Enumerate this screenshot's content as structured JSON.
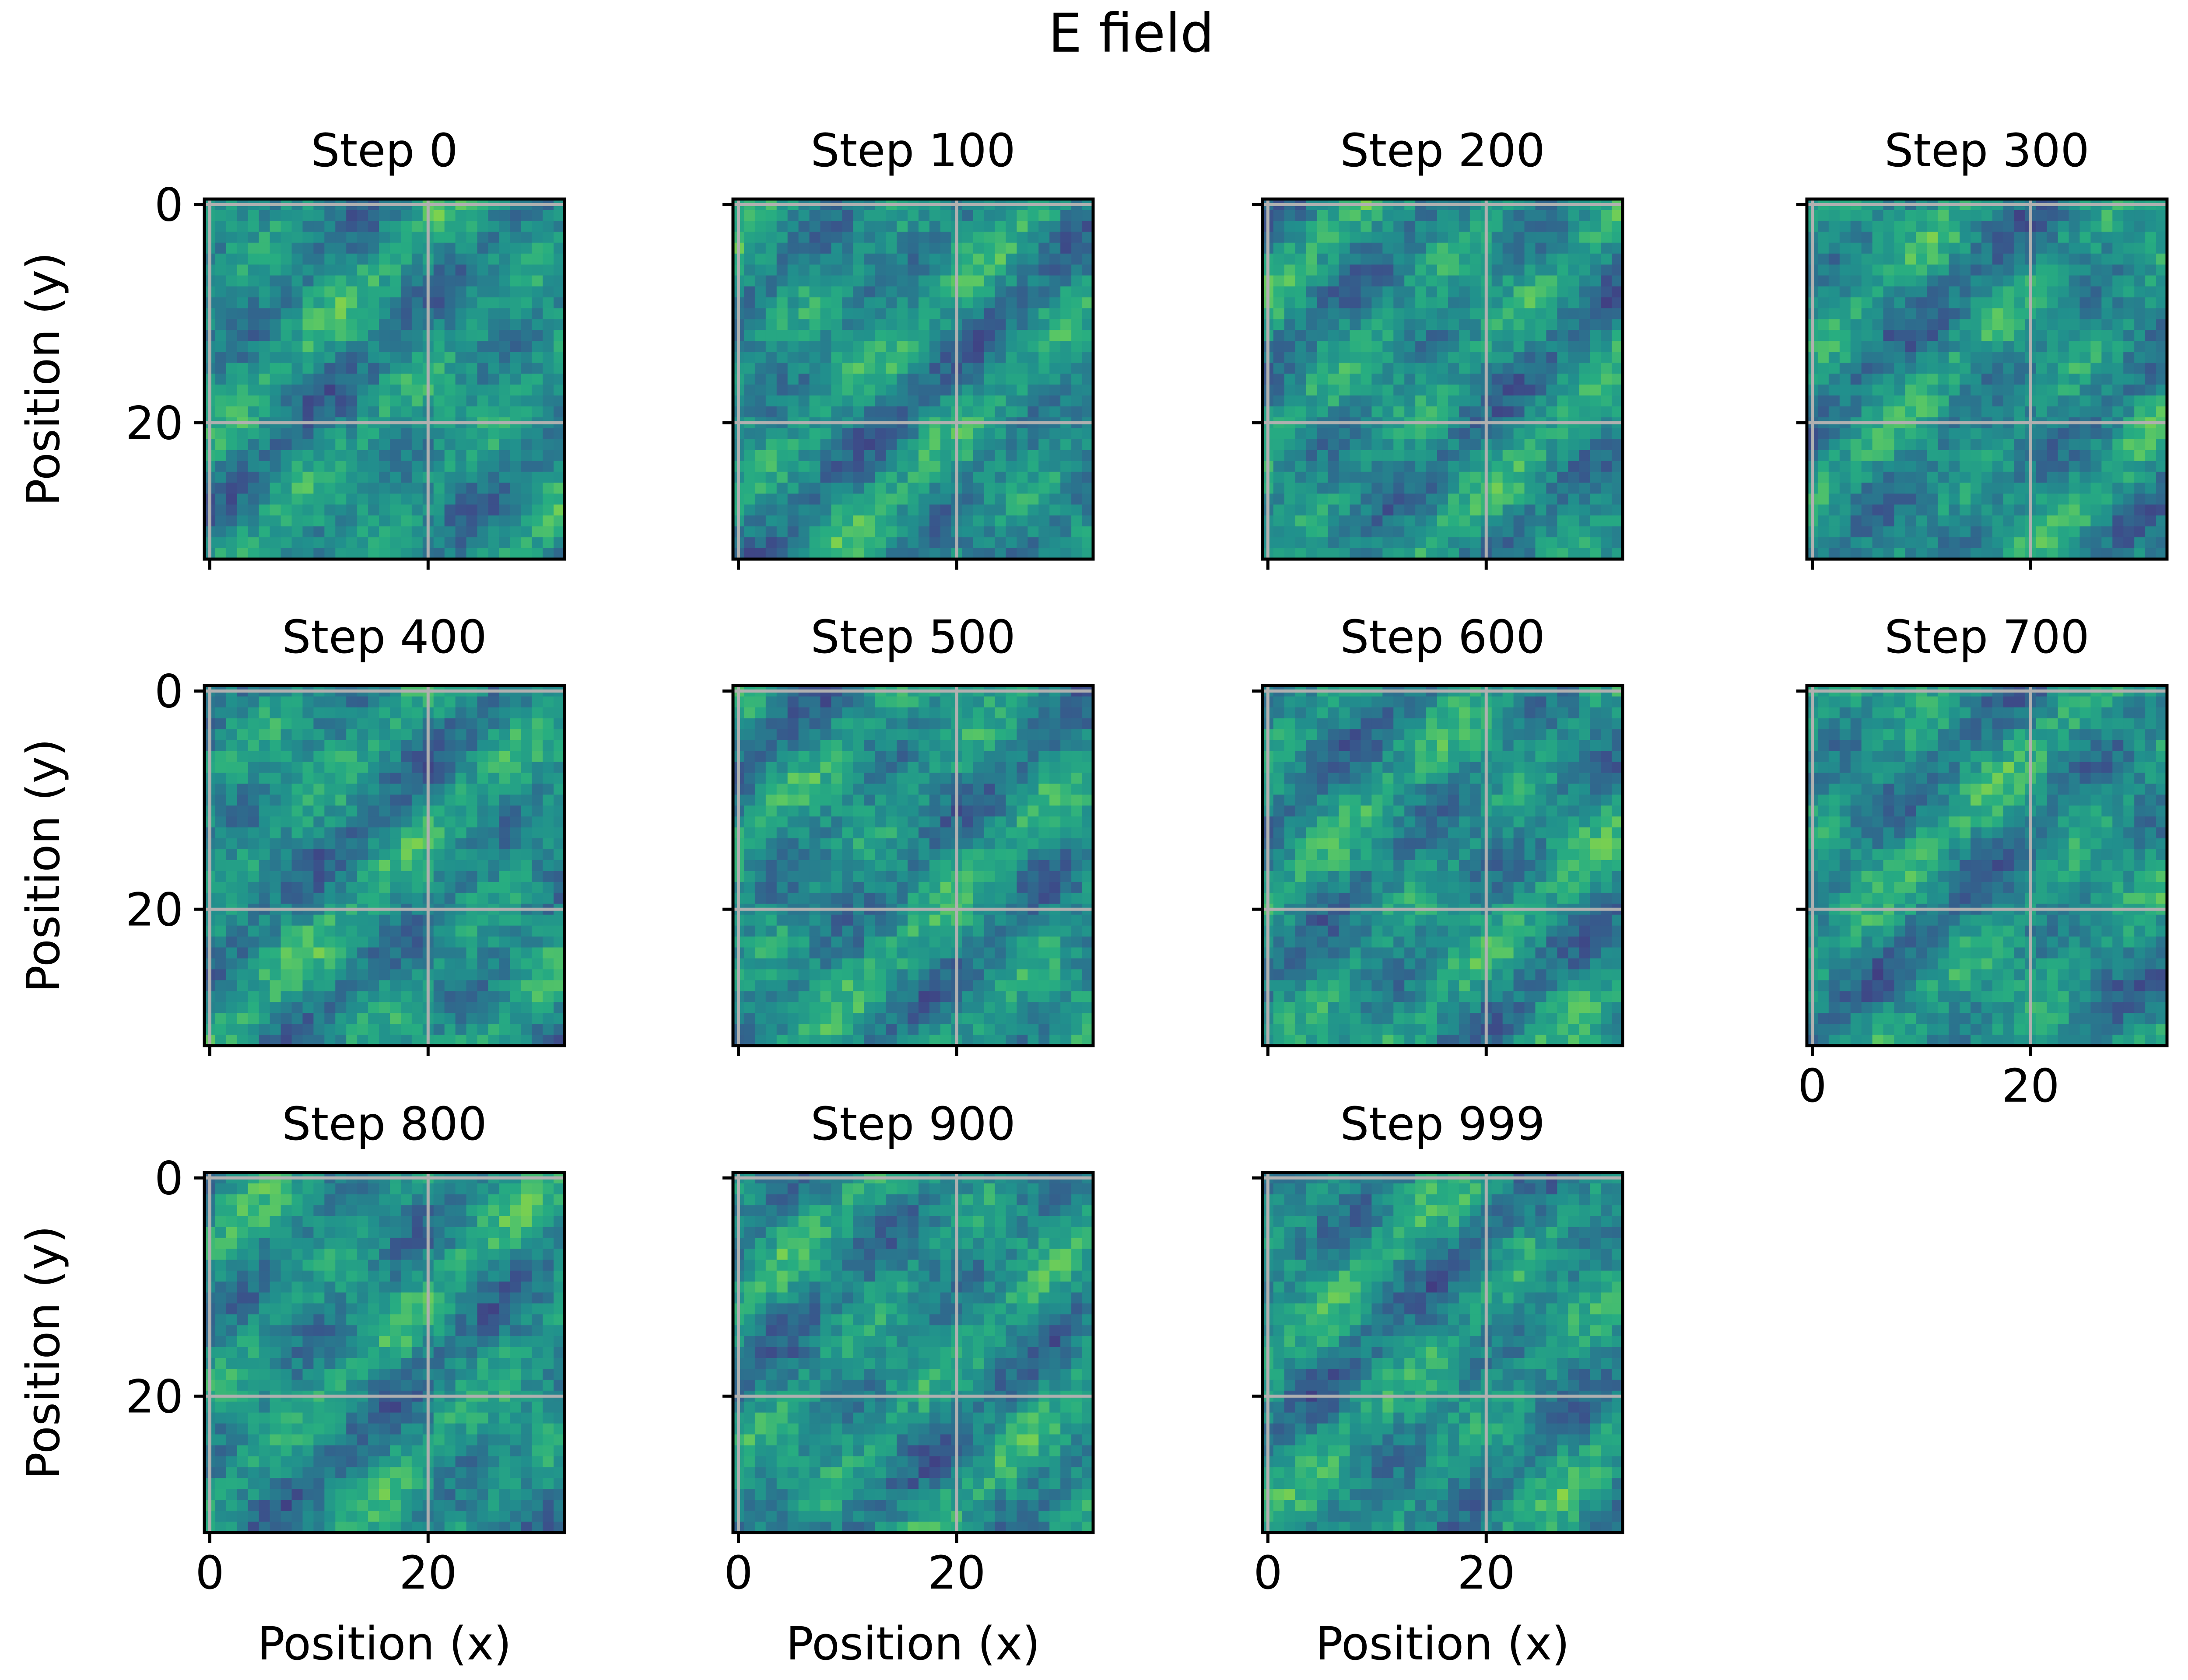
{
  "figure": {
    "suptitle": "E field",
    "xlabel": "Position (x)",
    "ylabel": "Position (y)"
  },
  "chart_data": {
    "type": "heatmap",
    "colormap": "viridis",
    "grid_size": [
      33,
      33
    ],
    "xlim": [
      -0.5,
      32.5
    ],
    "ylim": [
      32.5,
      -0.5
    ],
    "x_ticks": [
      0,
      20
    ],
    "y_ticks": [
      0,
      20
    ],
    "x_tick_labels": [
      "0",
      "20"
    ],
    "y_tick_labels": [
      "0",
      "20"
    ],
    "grid": true,
    "shared_axes": true,
    "layout": {
      "rows": 3,
      "cols": 4
    },
    "panels": [
      {
        "title": "Step 0"
      },
      {
        "title": "Step 100"
      },
      {
        "title": "Step 200"
      },
      {
        "title": "Step 300"
      },
      {
        "title": "Step 400"
      },
      {
        "title": "Step 500"
      },
      {
        "title": "Step 600"
      },
      {
        "title": "Step 700"
      },
      {
        "title": "Step 800"
      },
      {
        "title": "Step 900"
      },
      {
        "title": "Step 999"
      }
    ]
  }
}
